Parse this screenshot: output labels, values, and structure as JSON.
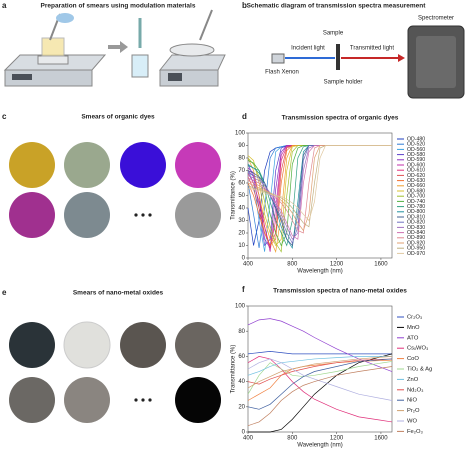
{
  "panels": {
    "a": {
      "letter": "a",
      "title": "Preparation of smears using modulation materials"
    },
    "b": {
      "letter": "b",
      "title": "Schematic diagram of transmission spectra measurement",
      "labels": [
        "Sample",
        "Incident light",
        "Transmitted light",
        "Spectrometer",
        "Flash Xenon",
        "Sample holder"
      ]
    },
    "c": {
      "letter": "c",
      "title": "Smears of organic dyes"
    },
    "e": {
      "letter": "e",
      "title": "Smears of nano-metal oxides"
    }
  },
  "chart_data": [
    {
      "type": "line",
      "panel_label": "d",
      "title": "Transmission spectra of organic dyes",
      "x_label": "Wavelength (nm)",
      "y_label": "Transmittance (%)",
      "x": [
        400,
        450,
        500,
        550,
        600,
        650,
        700,
        750,
        800,
        850,
        900,
        950,
        1000,
        1050,
        1100,
        1400,
        1700
      ],
      "xlim": [
        400,
        1700
      ],
      "xticks": [
        400,
        800,
        1200,
        1600
      ],
      "ylim": [
        0,
        100
      ],
      "yticks": [
        0,
        10,
        20,
        30,
        40,
        50,
        60,
        70,
        80,
        90,
        100
      ],
      "legend": "right",
      "series": [
        {
          "name": "OD-480",
          "color": "#1f3fbf",
          "values": [
            40,
            10,
            30,
            70,
            85,
            88,
            89,
            89,
            90,
            90,
            90,
            90,
            90,
            90,
            90,
            90,
            90
          ]
        },
        {
          "name": "OD-520",
          "color": "#2e7bd6",
          "values": [
            60,
            35,
            8,
            40,
            80,
            88,
            89,
            90,
            90,
            90,
            90,
            90,
            90,
            90,
            90,
            90,
            90
          ]
        },
        {
          "name": "OD-560",
          "color": "#3aa0e0",
          "values": [
            70,
            60,
            30,
            5,
            45,
            85,
            89,
            90,
            90,
            90,
            90,
            90,
            90,
            90,
            90,
            90,
            90
          ]
        },
        {
          "name": "OD-580",
          "color": "#5a3cc8",
          "values": [
            75,
            65,
            40,
            10,
            15,
            70,
            88,
            90,
            90,
            90,
            90,
            90,
            90,
            90,
            90,
            90,
            90
          ]
        },
        {
          "name": "OD-590",
          "color": "#8a2fc0",
          "values": [
            72,
            68,
            50,
            15,
            8,
            55,
            85,
            90,
            90,
            90,
            90,
            90,
            90,
            90,
            90,
            90,
            90
          ]
        },
        {
          "name": "OD-600",
          "color": "#c02fa8",
          "values": [
            70,
            65,
            50,
            25,
            5,
            40,
            82,
            90,
            90,
            90,
            90,
            90,
            90,
            90,
            90,
            90,
            90
          ]
        },
        {
          "name": "OD-610",
          "color": "#e0307a",
          "values": [
            68,
            60,
            45,
            25,
            8,
            30,
            78,
            89,
            90,
            90,
            90,
            90,
            90,
            90,
            90,
            90,
            90
          ]
        },
        {
          "name": "OD-620",
          "color": "#e05050",
          "values": [
            65,
            55,
            40,
            20,
            10,
            20,
            70,
            88,
            90,
            90,
            90,
            90,
            90,
            90,
            90,
            90,
            90
          ]
        },
        {
          "name": "OD-630",
          "color": "#f07030",
          "values": [
            60,
            50,
            35,
            20,
            10,
            15,
            60,
            86,
            90,
            90,
            90,
            90,
            90,
            90,
            90,
            90,
            90
          ]
        },
        {
          "name": "OD-660",
          "color": "#f0a030",
          "values": [
            80,
            70,
            50,
            30,
            15,
            5,
            35,
            80,
            90,
            90,
            90,
            90,
            90,
            90,
            90,
            90,
            90
          ]
        },
        {
          "name": "OD-680",
          "color": "#d8c030",
          "values": [
            82,
            78,
            60,
            35,
            20,
            10,
            15,
            70,
            89,
            90,
            90,
            90,
            90,
            90,
            90,
            90,
            90
          ]
        },
        {
          "name": "OD-700",
          "color": "#a0c030",
          "values": [
            80,
            75,
            65,
            45,
            25,
            12,
            5,
            50,
            85,
            90,
            90,
            90,
            90,
            90,
            90,
            90,
            90
          ]
        },
        {
          "name": "OD-740",
          "color": "#50b040",
          "values": [
            78,
            76,
            70,
            55,
            35,
            20,
            10,
            20,
            75,
            88,
            90,
            90,
            90,
            90,
            90,
            90,
            90
          ]
        },
        {
          "name": "OD-780",
          "color": "#30a080",
          "values": [
            75,
            72,
            70,
            60,
            45,
            30,
            20,
            10,
            30,
            80,
            89,
            90,
            90,
            90,
            90,
            90,
            90
          ]
        },
        {
          "name": "OD-800",
          "color": "#2090a0",
          "values": [
            74,
            72,
            68,
            60,
            50,
            40,
            25,
            15,
            8,
            45,
            85,
            90,
            90,
            90,
            90,
            90,
            90
          ]
        },
        {
          "name": "OD-810",
          "color": "#406090",
          "values": [
            70,
            68,
            65,
            60,
            50,
            40,
            30,
            15,
            10,
            35,
            82,
            90,
            90,
            90,
            90,
            90,
            90
          ]
        },
        {
          "name": "OD-820",
          "color": "#7070c0",
          "values": [
            68,
            66,
            64,
            58,
            50,
            42,
            32,
            20,
            12,
            25,
            78,
            90,
            90,
            90,
            90,
            90,
            90
          ]
        },
        {
          "name": "OD-830",
          "color": "#a070c0",
          "values": [
            66,
            64,
            62,
            58,
            52,
            45,
            35,
            25,
            15,
            20,
            70,
            88,
            90,
            90,
            90,
            90,
            90
          ]
        },
        {
          "name": "OD-840",
          "color": "#d070b0",
          "values": [
            64,
            62,
            60,
            56,
            50,
            44,
            38,
            28,
            18,
            15,
            60,
            85,
            90,
            90,
            90,
            90,
            90
          ]
        },
        {
          "name": "OD-890",
          "color": "#e08890",
          "values": [
            62,
            60,
            58,
            55,
            52,
            48,
            44,
            38,
            30,
            22,
            20,
            60,
            88,
            90,
            90,
            90,
            90
          ]
        },
        {
          "name": "OD-920",
          "color": "#e0a070",
          "values": [
            60,
            58,
            56,
            54,
            52,
            50,
            46,
            42,
            36,
            28,
            22,
            35,
            80,
            90,
            90,
            90,
            90
          ]
        },
        {
          "name": "OD-950",
          "color": "#c0b080",
          "values": [
            58,
            56,
            55,
            53,
            52,
            50,
            48,
            45,
            40,
            34,
            28,
            25,
            60,
            88,
            90,
            90,
            90
          ]
        },
        {
          "name": "OD-970",
          "color": "#e0c8a0",
          "values": [
            56,
            55,
            54,
            52,
            51,
            50,
            49,
            47,
            44,
            40,
            35,
            30,
            45,
            80,
            90,
            90,
            90
          ]
        }
      ]
    },
    {
      "type": "line",
      "panel_label": "f",
      "title": "Transmission spectra of nano-metal oxides",
      "x_label": "Wavelength (nm)",
      "y_label": "Transmittance (%)",
      "x": [
        400,
        500,
        600,
        700,
        800,
        900,
        1000,
        1200,
        1400,
        1700
      ],
      "xlim": [
        400,
        1700
      ],
      "xticks": [
        400,
        800,
        1200,
        1600
      ],
      "ylim": [
        0,
        100
      ],
      "yticks": [
        0,
        20,
        40,
        60,
        80,
        100
      ],
      "legend": "right",
      "series": [
        {
          "name": "Cr₂O₃",
          "color": "#3050c0",
          "values": [
            62,
            63,
            64,
            63,
            62,
            62,
            62,
            62,
            62,
            62
          ]
        },
        {
          "name": "MnO",
          "color": "#000000",
          "values": [
            0,
            0,
            0,
            2,
            10,
            20,
            30,
            45,
            55,
            62
          ]
        },
        {
          "name": "ATO",
          "color": "#9040d0",
          "values": [
            85,
            89,
            90,
            88,
            84,
            80,
            75,
            66,
            58,
            48
          ]
        },
        {
          "name": "CsₓWO₃",
          "color": "#e0307a",
          "values": [
            55,
            60,
            58,
            50,
            40,
            32,
            26,
            18,
            12,
            8
          ]
        },
        {
          "name": "CoO",
          "color": "#f08040",
          "values": [
            25,
            30,
            35,
            45,
            50,
            52,
            53,
            55,
            56,
            57
          ]
        },
        {
          "name": "TiO₂ & Ag",
          "color": "#a0d890",
          "values": [
            30,
            45,
            55,
            50,
            45,
            44,
            45,
            48,
            52,
            56
          ]
        },
        {
          "name": "ZnO",
          "color": "#70c0e0",
          "values": [
            45,
            48,
            52,
            55,
            56,
            57,
            58,
            59,
            60,
            60
          ]
        },
        {
          "name": "Nd₂O₃",
          "color": "#e05050",
          "values": [
            40,
            38,
            42,
            45,
            48,
            50,
            52,
            55,
            57,
            58
          ]
        },
        {
          "name": "NiO",
          "color": "#4060a0",
          "values": [
            20,
            18,
            22,
            30,
            38,
            44,
            48,
            52,
            56,
            58
          ]
        },
        {
          "name": "Pr₂O",
          "color": "#d0a070",
          "values": [
            35,
            40,
            44,
            48,
            50,
            52,
            54,
            56,
            58,
            60
          ]
        },
        {
          "name": "WO",
          "color": "#b0b0e0",
          "values": [
            50,
            55,
            58,
            55,
            50,
            45,
            42,
            36,
            30,
            25
          ]
        },
        {
          "name": "Fe₂O₃",
          "color": "#c08060",
          "values": [
            5,
            8,
            15,
            25,
            32,
            37,
            40,
            45,
            48,
            52
          ]
        }
      ]
    }
  ]
}
